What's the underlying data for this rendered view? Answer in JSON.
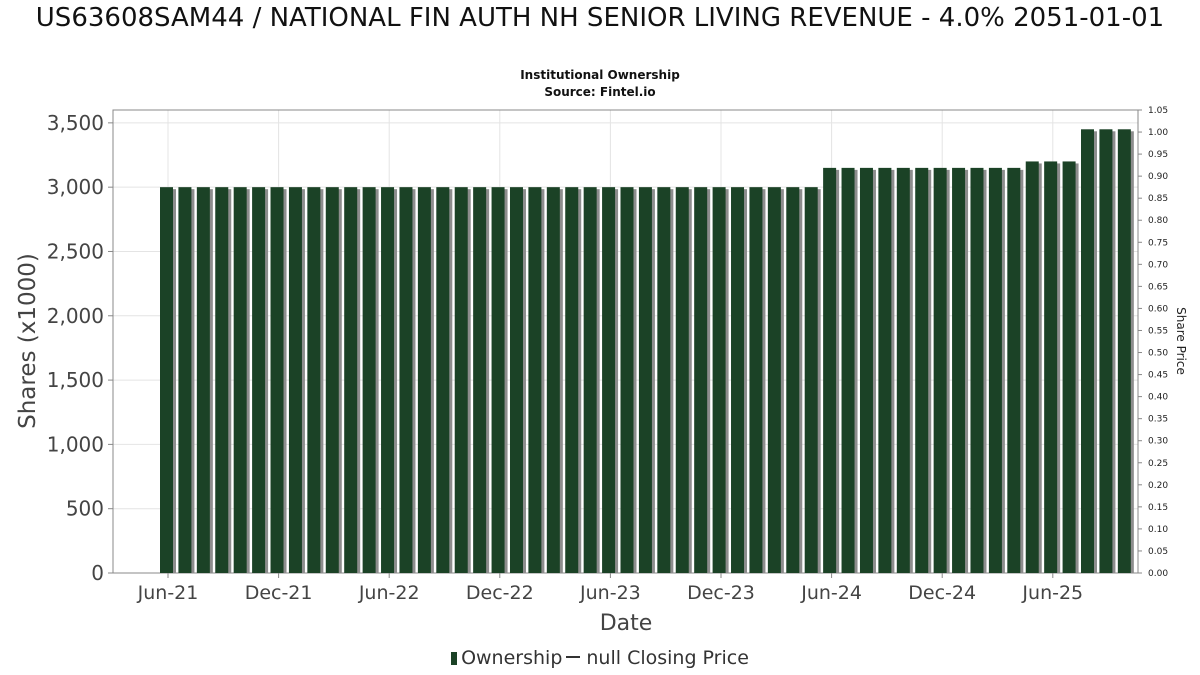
{
  "chart_data": {
    "type": "bar",
    "title": "US63608SAM44 / NATIONAL FIN AUTH NH SENIOR LIVING REVENUE - 4.0% 2051-01-01",
    "subtitle_lines": [
      "Institutional Ownership",
      "Source: Fintel.io"
    ],
    "xlabel": "Date",
    "ylabel": "Shares (x1000)",
    "y2label": "Share Price",
    "ylim": [
      0,
      3600
    ],
    "y2lim": [
      0,
      1.05
    ],
    "y_ticks": [
      "0",
      "500",
      "1,000",
      "1,500",
      "2,000",
      "2,500",
      "3,000",
      "3,500"
    ],
    "y2_ticks": [
      "0.00",
      "0.05",
      "0.10",
      "0.15",
      "0.20",
      "0.25",
      "0.30",
      "0.35",
      "0.40",
      "0.45",
      "0.50",
      "0.55",
      "0.60",
      "0.65",
      "0.70",
      "0.75",
      "0.80",
      "0.85",
      "0.90",
      "0.95",
      "1.00",
      "1.05"
    ],
    "x_ticks": [
      "Jun-21",
      "Dec-21",
      "Jun-22",
      "Dec-22",
      "Jun-23",
      "Dec-23",
      "Jun-24",
      "Dec-24",
      "Jun-25"
    ],
    "series": [
      {
        "name": "Ownership",
        "color": "#1b4226",
        "values": [
          3000,
          3000,
          3000,
          3000,
          3000,
          3000,
          3000,
          3000,
          3000,
          3000,
          3000,
          3000,
          3000,
          3000,
          3000,
          3000,
          3000,
          3000,
          3000,
          3000,
          3000,
          3000,
          3000,
          3000,
          3000,
          3000,
          3000,
          3000,
          3000,
          3000,
          3000,
          3000,
          3000,
          3000,
          3000,
          3000,
          3150,
          3150,
          3150,
          3150,
          3150,
          3150,
          3150,
          3150,
          3150,
          3150,
          3150,
          3200,
          3200,
          3200,
          3450,
          3450,
          3450
        ]
      }
    ],
    "legend": {
      "position": "bottom",
      "items": [
        "Ownership",
        "null Closing Price"
      ]
    },
    "grid": true
  }
}
